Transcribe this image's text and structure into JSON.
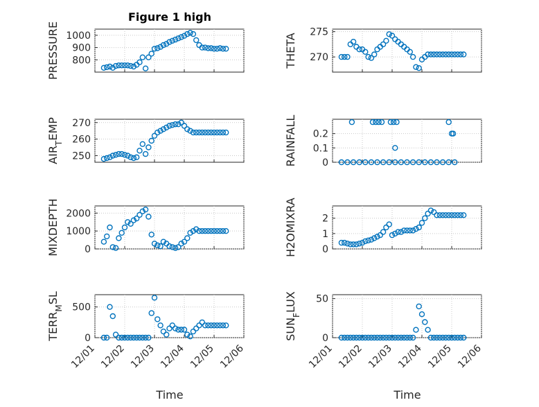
{
  "figure": {
    "title": "Figure 1 high",
    "x_label": "Time",
    "x_ticks": [
      "12/01",
      "12/02",
      "12/03",
      "12/04",
      "12/05",
      "12/06"
    ]
  },
  "colors": {
    "marker": "#0072bd",
    "axis": "#262626",
    "grid": "#c8c8c8",
    "background": "#ffffff"
  },
  "chart_data": [
    {
      "type": "scatter",
      "ylabel": "PRESSURE",
      "xlim": [
        0,
        5
      ],
      "ylim": [
        700,
        1050
      ],
      "yticks": [
        800,
        900,
        1000
      ],
      "ytick_labels": [
        "800",
        "900",
        "1000"
      ],
      "grid": true,
      "x": [
        0.3,
        0.4,
        0.5,
        0.6,
        0.7,
        0.8,
        0.9,
        1.0,
        1.1,
        1.2,
        1.3,
        1.4,
        1.5,
        1.6,
        1.7,
        1.8,
        1.9,
        2.0,
        2.1,
        2.2,
        2.3,
        2.4,
        2.5,
        2.6,
        2.7,
        2.8,
        2.9,
        3.0,
        3.1,
        3.2,
        3.3,
        3.4,
        3.5,
        3.6,
        3.7,
        3.8,
        3.9,
        4.0,
        4.1,
        4.2,
        4.3,
        4.4
      ],
      "y": [
        735,
        740,
        745,
        735,
        750,
        755,
        755,
        755,
        755,
        750,
        745,
        760,
        780,
        820,
        730,
        820,
        850,
        890,
        895,
        905,
        920,
        930,
        945,
        955,
        965,
        975,
        985,
        995,
        1010,
        1020,
        1010,
        960,
        920,
        900,
        900,
        895,
        895,
        890,
        890,
        895,
        890,
        890
      ]
    },
    {
      "type": "scatter",
      "ylabel": "THETA",
      "xlim": [
        0,
        5
      ],
      "ylim": [
        267,
        275.5
      ],
      "yticks": [
        270,
        275
      ],
      "ytick_labels": [
        "270",
        "275"
      ],
      "grid": true,
      "x": [
        0.3,
        0.4,
        0.5,
        0.6,
        0.7,
        0.8,
        0.9,
        1.0,
        1.1,
        1.2,
        1.3,
        1.4,
        1.5,
        1.6,
        1.7,
        1.8,
        1.9,
        2.0,
        2.1,
        2.2,
        2.3,
        2.4,
        2.5,
        2.6,
        2.7,
        2.8,
        2.9,
        3.0,
        3.1,
        3.2,
        3.3,
        3.4,
        3.5,
        3.6,
        3.7,
        3.8,
        3.9,
        4.0,
        4.1,
        4.2,
        4.3,
        4.4
      ],
      "y": [
        270,
        270,
        270,
        272.5,
        273,
        272,
        271.5,
        271.5,
        271,
        270,
        269.8,
        270.5,
        271.5,
        272,
        272.5,
        273.2,
        274.5,
        274.2,
        273.5,
        273,
        272.5,
        272,
        271.5,
        271,
        270,
        268,
        267.8,
        269.5,
        270,
        270.5,
        270.5,
        270.5,
        270.5,
        270.5,
        270.5,
        270.5,
        270.5,
        270.5,
        270.5,
        270.5,
        270.5,
        270.5
      ]
    },
    {
      "type": "scatter",
      "ylabel": "AIR_TEMP",
      "xlim": [
        0,
        5
      ],
      "ylim": [
        246,
        272
      ],
      "yticks": [
        250,
        260,
        270
      ],
      "ytick_labels": [
        "250",
        "260",
        "270"
      ],
      "grid": true,
      "x": [
        0.3,
        0.4,
        0.5,
        0.6,
        0.7,
        0.8,
        0.9,
        1.0,
        1.1,
        1.2,
        1.3,
        1.4,
        1.5,
        1.6,
        1.7,
        1.8,
        1.9,
        2.0,
        2.1,
        2.2,
        2.3,
        2.4,
        2.5,
        2.6,
        2.7,
        2.8,
        2.9,
        3.0,
        3.1,
        3.2,
        3.3,
        3.4,
        3.5,
        3.6,
        3.7,
        3.8,
        3.9,
        4.0,
        4.1,
        4.2,
        4.3,
        4.4
      ],
      "y": [
        248,
        248.5,
        249,
        250,
        250.5,
        251,
        251,
        250.5,
        250,
        249,
        248.5,
        249,
        253,
        257,
        251,
        255,
        259,
        262,
        264,
        265,
        266,
        267,
        268,
        268.5,
        269,
        269,
        270,
        268,
        266,
        265,
        264,
        264,
        264,
        264,
        264,
        264,
        264,
        264,
        264,
        264,
        264,
        264
      ]
    },
    {
      "type": "scatter",
      "ylabel": "RAINFALL",
      "xlim": [
        0,
        5
      ],
      "ylim": [
        0,
        0.3
      ],
      "yticks": [
        0,
        0.1,
        0.2
      ],
      "ytick_labels": [
        "0",
        "0.1",
        "0.2"
      ],
      "grid": true,
      "x": [
        0.3,
        0.5,
        0.7,
        0.9,
        1.1,
        1.3,
        1.5,
        1.7,
        1.9,
        2.1,
        2.3,
        2.5,
        2.7,
        2.9,
        3.1,
        3.3,
        3.5,
        3.7,
        3.9,
        4.1,
        0.65,
        1.35,
        1.45,
        1.55,
        1.65,
        1.95,
        2.05,
        2.1,
        2.15,
        3.9,
        4.0,
        4.05
      ],
      "y": [
        0,
        0,
        0,
        0,
        0,
        0,
        0,
        0,
        0,
        0,
        0,
        0,
        0,
        0,
        0,
        0,
        0,
        0,
        0,
        0,
        0.28,
        0.28,
        0.28,
        0.28,
        0.28,
        0.28,
        0.28,
        0.1,
        0.28,
        0.28,
        0.2,
        0.2
      ]
    },
    {
      "type": "scatter",
      "ylabel": "MIXDEPTH",
      "xlim": [
        0,
        5
      ],
      "ylim": [
        0,
        2400
      ],
      "yticks": [
        0,
        1000,
        2000
      ],
      "ytick_labels": [
        "0",
        "1000",
        "2000"
      ],
      "grid": true,
      "x": [
        0.3,
        0.4,
        0.5,
        0.6,
        0.7,
        0.8,
        0.9,
        1.0,
        1.1,
        1.2,
        1.3,
        1.4,
        1.5,
        1.6,
        1.7,
        1.8,
        1.9,
        2.0,
        2.1,
        2.2,
        2.3,
        2.4,
        2.5,
        2.6,
        2.7,
        2.8,
        2.9,
        3.0,
        3.1,
        3.2,
        3.3,
        3.4,
        3.5,
        3.6,
        3.7,
        3.8,
        3.9,
        4.0,
        4.1,
        4.2,
        4.3,
        4.4
      ],
      "y": [
        400,
        700,
        1200,
        100,
        50,
        600,
        900,
        1200,
        1500,
        1400,
        1600,
        1700,
        1900,
        2100,
        2200,
        1800,
        800,
        300,
        200,
        150,
        400,
        300,
        150,
        100,
        50,
        100,
        300,
        400,
        600,
        900,
        1000,
        1100,
        1000,
        1000,
        1000,
        1000,
        1000,
        1000,
        1000,
        1000,
        1000,
        1000
      ]
    },
    {
      "type": "scatter",
      "ylabel": "H2OMIXRA",
      "xlim": [
        0,
        5
      ],
      "ylim": [
        0,
        2.8
      ],
      "yticks": [
        0,
        1,
        2
      ],
      "ytick_labels": [
        "0",
        "1",
        "2"
      ],
      "grid": true,
      "x": [
        0.3,
        0.4,
        0.5,
        0.6,
        0.7,
        0.8,
        0.9,
        1.0,
        1.1,
        1.2,
        1.3,
        1.4,
        1.5,
        1.6,
        1.7,
        1.8,
        1.9,
        2.0,
        2.1,
        2.2,
        2.3,
        2.4,
        2.5,
        2.6,
        2.7,
        2.8,
        2.9,
        3.0,
        3.1,
        3.2,
        3.3,
        3.4,
        3.5,
        3.6,
        3.7,
        3.8,
        3.9,
        4.0,
        4.1,
        4.2,
        4.3,
        4.4
      ],
      "y": [
        0.4,
        0.4,
        0.35,
        0.3,
        0.3,
        0.3,
        0.35,
        0.4,
        0.5,
        0.55,
        0.6,
        0.7,
        0.8,
        0.9,
        1.1,
        1.4,
        1.6,
        0.9,
        1.0,
        1.1,
        1.1,
        1.2,
        1.2,
        1.2,
        1.2,
        1.3,
        1.4,
        1.7,
        2.0,
        2.3,
        2.5,
        2.4,
        2.2,
        2.2,
        2.2,
        2.2,
        2.2,
        2.2,
        2.2,
        2.2,
        2.2,
        2.2
      ]
    },
    {
      "type": "scatter",
      "ylabel": "TERR_MSL",
      "xlim": [
        0,
        5
      ],
      "ylim": [
        0,
        700
      ],
      "yticks": [
        0,
        500
      ],
      "ytick_labels": [
        "0",
        "500"
      ],
      "grid": true,
      "x": [
        0.3,
        0.4,
        0.5,
        0.6,
        0.7,
        0.8,
        0.9,
        1.0,
        1.1,
        1.2,
        1.3,
        1.4,
        1.5,
        1.6,
        1.7,
        1.8,
        1.9,
        2.0,
        2.1,
        2.2,
        2.3,
        2.4,
        2.5,
        2.6,
        2.7,
        2.8,
        2.9,
        3.0,
        3.1,
        3.2,
        3.3,
        3.4,
        3.5,
        3.6,
        3.7,
        3.8,
        3.9,
        4.0,
        4.1,
        4.2,
        4.3,
        4.4
      ],
      "y": [
        0,
        0,
        500,
        350,
        50,
        0,
        0,
        0,
        0,
        0,
        0,
        0,
        0,
        0,
        0,
        0,
        400,
        650,
        300,
        200,
        100,
        50,
        150,
        200,
        150,
        130,
        130,
        130,
        50,
        20,
        100,
        150,
        200,
        250,
        200,
        200,
        200,
        200,
        200,
        200,
        200,
        200
      ]
    },
    {
      "type": "scatter",
      "ylabel": "SUN_FLUX",
      "xlim": [
        0,
        5
      ],
      "ylim": [
        0,
        55
      ],
      "yticks": [
        0,
        50
      ],
      "ytick_labels": [
        "0",
        "50"
      ],
      "grid": true,
      "x": [
        0.3,
        0.4,
        0.5,
        0.6,
        0.7,
        0.8,
        0.9,
        1.0,
        1.1,
        1.2,
        1.3,
        1.4,
        1.5,
        1.6,
        1.7,
        1.8,
        1.9,
        2.0,
        2.1,
        2.2,
        2.3,
        2.4,
        2.5,
        2.6,
        2.7,
        2.8,
        2.9,
        3.0,
        3.1,
        3.2,
        3.3,
        3.4,
        3.5,
        3.6,
        3.7,
        3.8,
        3.9,
        4.0,
        4.1,
        4.2,
        4.3,
        4.4
      ],
      "y": [
        0,
        0,
        0,
        0,
        0,
        0,
        0,
        0,
        0,
        0,
        0,
        0,
        0,
        0,
        0,
        0,
        0,
        0,
        0,
        0,
        0,
        0,
        0,
        0,
        0,
        10,
        40,
        30,
        20,
        10,
        0,
        0,
        0,
        0,
        0,
        0,
        0,
        0,
        0,
        0,
        0,
        0
      ]
    }
  ]
}
